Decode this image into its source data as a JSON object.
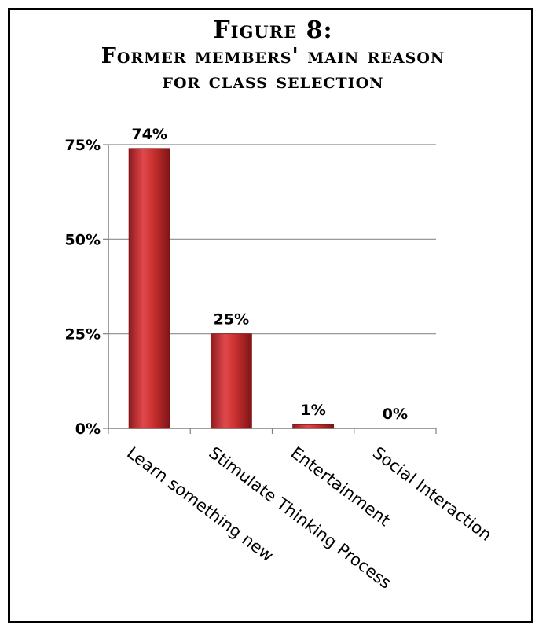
{
  "chart_data": {
    "type": "bar",
    "title_line1": "Figure 8:",
    "title_line2": "Former members' main reason",
    "title_line3": "for class selection",
    "categories": [
      "Learn something new",
      "Stimulate Thinking Process",
      "Entertainment",
      "Social Interaction"
    ],
    "values": [
      74,
      25,
      1,
      0
    ],
    "data_labels": [
      "74%",
      "25%",
      "1%",
      "0%"
    ],
    "y_ticks": [
      0,
      25,
      50,
      75
    ],
    "y_tick_labels": [
      "0%",
      "25%",
      "50%",
      "75%"
    ],
    "ylim": [
      0,
      75
    ],
    "grid": true,
    "legend": "none",
    "bar_color": "#c0282c"
  }
}
